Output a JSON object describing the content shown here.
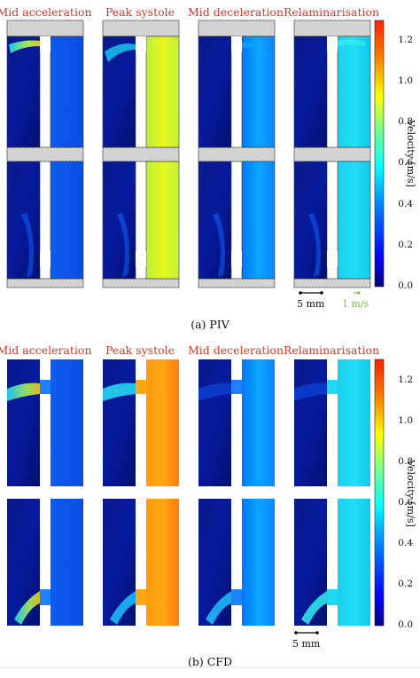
{
  "figure": {
    "piv": {
      "titles": [
        "Mid acceleration",
        "Peak systole",
        "Mid deceleration",
        "Relaminarisation"
      ],
      "caption": "(a) PIV",
      "colorbar": {
        "label": "Velocity [m/s]",
        "ticks": [
          "1.2",
          "1.0",
          "0.8",
          "0.6",
          "0.4",
          "0.2",
          "0.0"
        ],
        "min": 0.0,
        "max": 1.3
      },
      "scale_bar_length": "5 mm",
      "scale_vector": "1 m/s",
      "scale_vector_color": "#7dc242"
    },
    "cfd": {
      "titles": [
        "Mid acceleration",
        "Peak systole",
        "Mid deceleration",
        "Relaminarisation"
      ],
      "caption": "(b) CFD",
      "colorbar": {
        "label": "Velocity [m/s]",
        "ticks": [
          "1.2",
          "1.0",
          "0.8",
          "0.6",
          "0.4",
          "0.2",
          "0.0"
        ],
        "min": 0.0,
        "max": 1.3
      },
      "scale_bar_length": "5 mm"
    },
    "colors": {
      "title_red": "#d23a2a",
      "jet": [
        "#00007f",
        "#0000ff",
        "#007fff",
        "#00ffff",
        "#7fff7f",
        "#ffff00",
        "#ff7f00",
        "#ff0000",
        "#7f0000"
      ]
    }
  }
}
